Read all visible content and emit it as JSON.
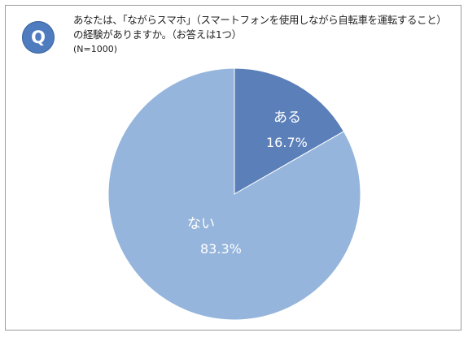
{
  "question": {
    "badge": "Q",
    "line1": "あなたは、「ながらスマホ」（スマートフォンを使用しながら自転車を運転すること）",
    "line2": "の経験がありますか。（お答えは1つ）",
    "sample": "(N=1000)"
  },
  "colors": {
    "yes": "#5b7fb9",
    "no": "#95b5dc",
    "badge": "#4f7bbf"
  },
  "chart_data": {
    "type": "pie",
    "title": "",
    "slices": [
      {
        "label": "ある",
        "value": 16.7,
        "display": "16.7%"
      },
      {
        "label": "ない",
        "value": 83.3,
        "display": "83.3%"
      }
    ],
    "start": "12 o'clock",
    "direction": "clockwise"
  }
}
